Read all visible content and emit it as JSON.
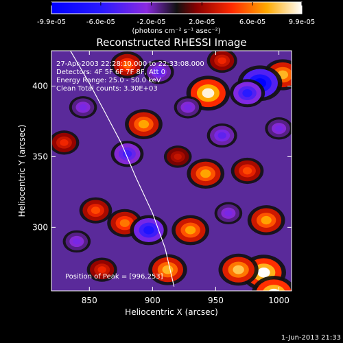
{
  "colorbar": {
    "tick_labels": [
      "-9.9e-05",
      "-6.0e-05",
      "-2.0e-05",
      "2.0e-05",
      "6.0e-05",
      "9.9e-05"
    ],
    "tick_values": [
      -9.9e-05,
      -6e-05,
      -2e-05,
      2e-05,
      6e-05,
      9.9e-05
    ],
    "range": [
      -9.9e-05,
      9.9e-05
    ],
    "units_label": "(photons cm⁻² s⁻¹ asec⁻²)"
  },
  "footer": {
    "date_label": "1-Jun-2013 21:33"
  },
  "chart_data": {
    "type": "heatmap",
    "title": "Reconstructed RHESSI Image",
    "xlabel": "Heliocentric X (arcsec)",
    "ylabel": "Heliocentric Y (arcsec)",
    "xlim": [
      820,
      1010
    ],
    "ylim": [
      255,
      425
    ],
    "x_ticks": [
      850,
      900,
      950,
      1000
    ],
    "y_ticks": [
      300,
      350,
      400
    ],
    "x_tick_labels": [
      "850",
      "900",
      "950",
      "1000"
    ],
    "y_tick_labels": [
      "300",
      "350",
      "400"
    ],
    "annotations": {
      "time": "27-Apr-2003 22:28:10.000 to 22:33:08.000",
      "detectors": "Detectors: 4F 5F 6F 7F 8F, Att 0",
      "energy": "Energy Range: 25.0 - 50.0 keV",
      "clean": "Clean    Total counts: 3.30E+03",
      "peak": "Position of Peak = [996,253]"
    },
    "limb_curve": {
      "x": [
        835,
        850,
        862,
        875,
        887,
        900,
        910,
        917
      ],
      "y": [
        425,
        402,
        382,
        360,
        335,
        310,
        285,
        258
      ]
    },
    "bright_sources": [
      {
        "x": 944,
        "y": 395,
        "value": 9.5e-05
      },
      {
        "x": 988,
        "y": 268,
        "value": 9.9e-05
      },
      {
        "x": 996,
        "y": 253,
        "value": 9.9e-05
      },
      {
        "x": 990,
        "y": 305,
        "value": 7e-05
      },
      {
        "x": 968,
        "y": 270,
        "value": 8e-05
      },
      {
        "x": 942,
        "y": 338,
        "value": 7e-05
      },
      {
        "x": 912,
        "y": 270,
        "value": 7.5e-05
      },
      {
        "x": 930,
        "y": 298,
        "value": 7e-05
      },
      {
        "x": 878,
        "y": 303,
        "value": 6e-05
      },
      {
        "x": 855,
        "y": 312,
        "value": 5e-05
      },
      {
        "x": 893,
        "y": 373,
        "value": 7e-05
      },
      {
        "x": 880,
        "y": 415,
        "value": 5.5e-05
      },
      {
        "x": 830,
        "y": 360,
        "value": 4e-05
      },
      {
        "x": 1003,
        "y": 408,
        "value": 7.5e-05
      },
      {
        "x": 955,
        "y": 418,
        "value": 4e-05
      },
      {
        "x": 975,
        "y": 340,
        "value": 5e-05
      },
      {
        "x": 860,
        "y": 270,
        "value": 4e-05
      },
      {
        "x": 920,
        "y": 350,
        "value": 3e-05
      }
    ],
    "dark_sources": [
      {
        "x": 985,
        "y": 402,
        "value": -9.9e-05
      },
      {
        "x": 975,
        "y": 395,
        "value": -6e-05
      },
      {
        "x": 897,
        "y": 298,
        "value": -7e-05
      },
      {
        "x": 880,
        "y": 352,
        "value": -5e-05
      },
      {
        "x": 905,
        "y": 410,
        "value": -4e-05
      },
      {
        "x": 955,
        "y": 365,
        "value": -4e-05
      },
      {
        "x": 845,
        "y": 385,
        "value": -3e-05
      },
      {
        "x": 960,
        "y": 310,
        "value": -3e-05
      },
      {
        "x": 840,
        "y": 290,
        "value": -3e-05
      },
      {
        "x": 1000,
        "y": 370,
        "value": -3e-05
      },
      {
        "x": 928,
        "y": 385,
        "value": -3e-05
      }
    ]
  }
}
